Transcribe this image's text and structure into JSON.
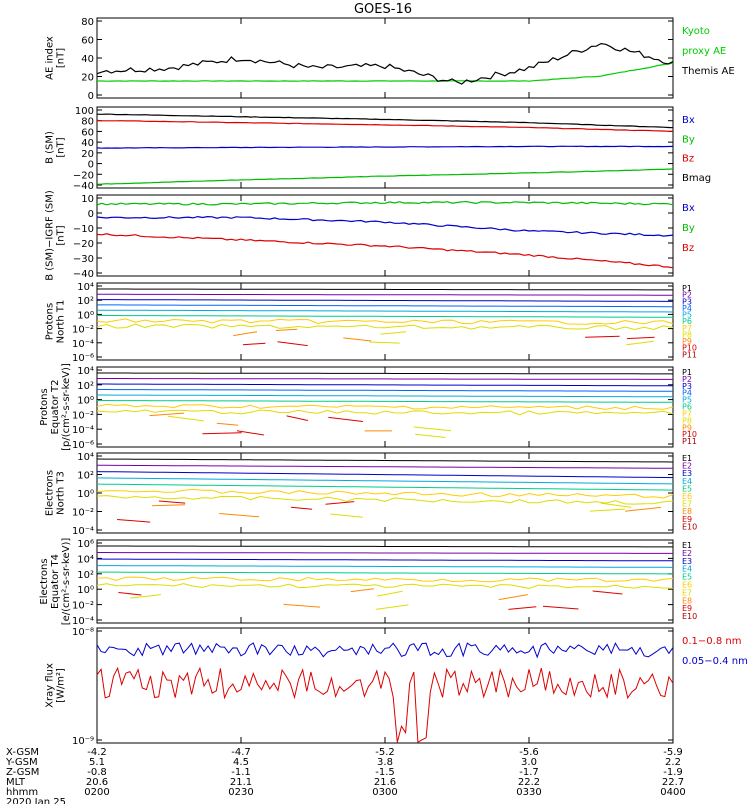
{
  "title": "GOES-16",
  "panels": [
    {
      "ylabel": [
        "AE index",
        "[nT]"
      ],
      "ticks": [
        "80",
        "60",
        "40",
        "20",
        "0"
      ],
      "legend": [
        {
          "text": "Kyoto",
          "color": "#00cc00"
        },
        {
          "text": "proxy AE",
          "color": "#00cc00"
        },
        {
          "text": "Themis AE",
          "color": "#000000"
        }
      ]
    },
    {
      "ylabel": [
        "B (SM)",
        "[nT]"
      ],
      "ticks": [
        "100",
        "80",
        "60",
        "40",
        "20",
        "0",
        "−20",
        "−40"
      ],
      "legend": [
        {
          "text": "Bx",
          "color": "#0000cc"
        },
        {
          "text": "By",
          "color": "#00bb00"
        },
        {
          "text": "Bz",
          "color": "#dd0000"
        },
        {
          "text": "Bmag",
          "color": "#000000"
        }
      ]
    },
    {
      "ylabel": [
        "B (SM)−IGRF (SM)",
        "[nT]"
      ],
      "ticks": [
        "10",
        "0",
        "−10",
        "−20",
        "−30",
        "−40"
      ],
      "legend": [
        {
          "text": "Bx",
          "color": "#0000cc"
        },
        {
          "text": "By",
          "color": "#00bb00"
        },
        {
          "text": "Bz",
          "color": "#dd0000"
        }
      ]
    },
    {
      "ylabel": [
        "Protons",
        "North T1"
      ],
      "ticks": [
        "10⁴",
        "10²",
        "10⁰",
        "10⁻²",
        "10⁻⁴",
        "10⁻⁶"
      ],
      "legend": [
        {
          "text": "P1",
          "color": "#000000"
        },
        {
          "text": "P2",
          "color": "#7700aa"
        },
        {
          "text": "P3",
          "color": "#0000cc"
        },
        {
          "text": "P4",
          "color": "#0066ff"
        },
        {
          "text": "P5",
          "color": "#00aadd"
        },
        {
          "text": "P6",
          "color": "#00cc88"
        },
        {
          "text": "P7",
          "color": "#ffcc00"
        },
        {
          "text": "P8",
          "color": "#dddd00"
        },
        {
          "text": "P9",
          "color": "#ff8800"
        },
        {
          "text": "P10",
          "color": "#dd0000"
        },
        {
          "text": "P11",
          "color": "#aa0000"
        }
      ]
    },
    {
      "ylabel": [
        "Protons",
        "Equator T2",
        "[p/(cm²-s-sr-keV)]"
      ],
      "ticks": [
        "10⁴",
        "10²",
        "10⁰",
        "10⁻²",
        "10⁻⁴",
        "10⁻⁶"
      ],
      "legend": [
        {
          "text": "P1",
          "color": "#000000"
        },
        {
          "text": "P2",
          "color": "#7700aa"
        },
        {
          "text": "P3",
          "color": "#0000cc"
        },
        {
          "text": "P4",
          "color": "#0066ff"
        },
        {
          "text": "P5",
          "color": "#00aadd"
        },
        {
          "text": "P6",
          "color": "#00cc88"
        },
        {
          "text": "P7",
          "color": "#ffcc00"
        },
        {
          "text": "P8",
          "color": "#dddd00"
        },
        {
          "text": "P9",
          "color": "#ff8800"
        },
        {
          "text": "P10",
          "color": "#dd0000"
        },
        {
          "text": "P11",
          "color": "#aa0000"
        }
      ]
    },
    {
      "ylabel": [
        "Electrons",
        "North T3"
      ],
      "ticks": [
        "10⁴",
        "10²",
        "10⁰",
        "10⁻²",
        "10⁻⁴"
      ],
      "legend": [
        {
          "text": "E1",
          "color": "#000000"
        },
        {
          "text": "E2",
          "color": "#7700aa"
        },
        {
          "text": "E3",
          "color": "#0000cc"
        },
        {
          "text": "E4",
          "color": "#00aadd"
        },
        {
          "text": "E5",
          "color": "#00cc88"
        },
        {
          "text": "E6",
          "color": "#ffcc00"
        },
        {
          "text": "E7",
          "color": "#dddd00"
        },
        {
          "text": "E8",
          "color": "#ff8800"
        },
        {
          "text": "E9",
          "color": "#dd0000"
        },
        {
          "text": "E10",
          "color": "#aa0000"
        }
      ]
    },
    {
      "ylabel": [
        "Electrons",
        "Equator T4",
        "[e/(cm²-s-sr-keV)]"
      ],
      "ticks": [
        "10⁶",
        "10⁴",
        "10²",
        "10⁰",
        "10⁻²",
        "10⁻⁴"
      ],
      "legend": [
        {
          "text": "E1",
          "color": "#000000"
        },
        {
          "text": "E2",
          "color": "#7700aa"
        },
        {
          "text": "E3",
          "color": "#0000cc"
        },
        {
          "text": "E4",
          "color": "#00aadd"
        },
        {
          "text": "E5",
          "color": "#00cc88"
        },
        {
          "text": "E6",
          "color": "#ffcc00"
        },
        {
          "text": "E7",
          "color": "#dddd00"
        },
        {
          "text": "E8",
          "color": "#ff8800"
        },
        {
          "text": "E9",
          "color": "#dd0000"
        },
        {
          "text": "E10",
          "color": "#aa0000"
        }
      ]
    },
    {
      "ylabel": [
        "Xray flux",
        "[W/m²]"
      ],
      "ticks": [
        "10⁻⁸",
        "10⁻⁹"
      ],
      "legend": [
        {
          "text": "0.1−0.8 nm",
          "color": "#dd0000"
        },
        {
          "text": "0.05−0.4 nm",
          "color": "#0000cc"
        }
      ]
    }
  ],
  "footer": {
    "row_labels": [
      "X-GSM",
      "Y-GSM",
      "Z-GSM",
      "MLT",
      "hhmm",
      "2020 Jan 25"
    ],
    "columns": [
      [
        "-4.2",
        "5.1",
        "-0.8",
        "20.6",
        "0200"
      ],
      [
        "-4.7",
        "4.5",
        "-1.1",
        "21.1",
        "0230"
      ],
      [
        "-5.2",
        "3.8",
        "-1.5",
        "21.6",
        "0300"
      ],
      [
        "-5.6",
        "3.0",
        "-1.7",
        "22.2",
        "0330"
      ],
      [
        "-5.9",
        "2.2",
        "-1.9",
        "22.7",
        "0400"
      ]
    ]
  },
  "chart_data": [
    {
      "type": "line",
      "title": "AE index",
      "ylim": [
        0,
        80
      ],
      "x": [
        "0200",
        "0215",
        "0230",
        "0245",
        "0300",
        "0315",
        "0330",
        "0345",
        "0400"
      ],
      "series": [
        {
          "name": "Kyoto proxy AE",
          "values": [
            17,
            17,
            17,
            17,
            17,
            17,
            17,
            22,
            35
          ]
        },
        {
          "name": "Themis AE",
          "values": [
            27,
            30,
            40,
            30,
            32,
            15,
            30,
            55,
            35
          ]
        }
      ]
    },
    {
      "type": "line",
      "title": "B (SM)",
      "ylim": [
        -45,
        105
      ],
      "x": [
        "0200",
        "0230",
        "0300",
        "0330",
        "0400"
      ],
      "series": [
        {
          "name": "Bx",
          "values": [
            29,
            30,
            31,
            32,
            32
          ]
        },
        {
          "name": "By",
          "values": [
            -38,
            -30,
            -23,
            -17,
            -10
          ]
        },
        {
          "name": "Bz",
          "values": [
            80,
            76,
            72,
            67,
            60
          ]
        },
        {
          "name": "Bmag",
          "values": [
            92,
            87,
            82,
            76,
            67
          ]
        }
      ]
    },
    {
      "type": "line",
      "title": "B (SM)-IGRF (SM)",
      "ylim": [
        -42,
        12
      ],
      "x": [
        "0200",
        "0230",
        "0300",
        "0330",
        "0400"
      ],
      "series": [
        {
          "name": "Bx",
          "values": [
            -3,
            -3,
            -6,
            -12,
            -15
          ]
        },
        {
          "name": "By",
          "values": [
            6,
            6,
            7,
            7,
            6
          ]
        },
        {
          "name": "Bz",
          "values": [
            -14,
            -18,
            -22,
            -28,
            -36
          ]
        }
      ]
    },
    {
      "type": "line",
      "title": "Protons North T1",
      "log": true,
      "ylim": [
        "1e-6",
        "1e4"
      ]
    },
    {
      "type": "line",
      "title": "Protons Equator T2",
      "log": true,
      "ylim": [
        "1e-6",
        "1e4"
      ]
    },
    {
      "type": "line",
      "title": "Electrons North T3",
      "log": true,
      "ylim": [
        "1e-4",
        "1e4"
      ]
    },
    {
      "type": "line",
      "title": "Electrons Equator T4",
      "log": true,
      "ylim": [
        "1e-4",
        "1e6"
      ]
    },
    {
      "type": "line",
      "title": "Xray flux",
      "log": true,
      "ylim": [
        "1e-9",
        "1e-8"
      ],
      "series": [
        {
          "name": "0.1-0.8 nm"
        },
        {
          "name": "0.05-0.4 nm"
        }
      ]
    }
  ]
}
